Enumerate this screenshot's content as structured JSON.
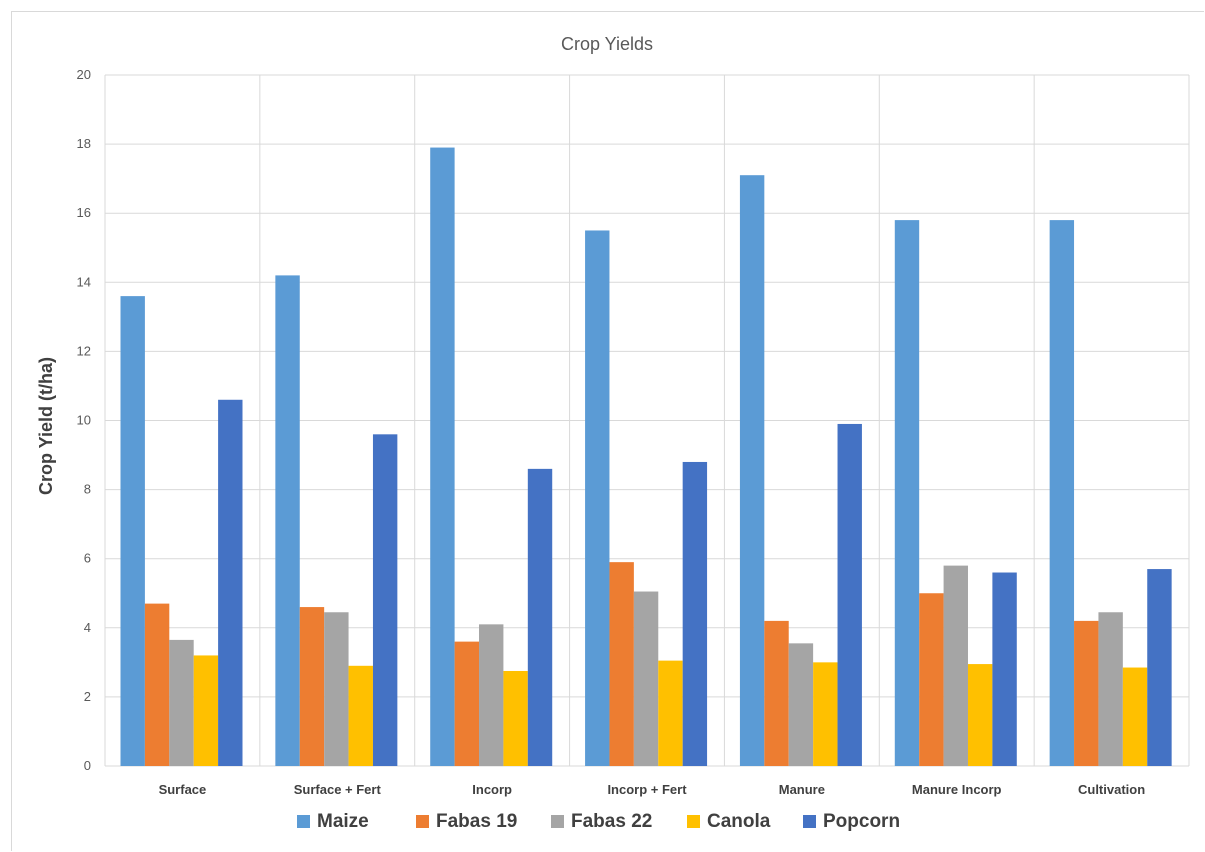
{
  "chart_data": {
    "type": "bar",
    "title": "Crop Yields",
    "xlabel": "",
    "ylabel": "Crop Yield (t/ha)",
    "ylim": [
      0,
      20
    ],
    "yticks": [
      0,
      2,
      4,
      6,
      8,
      10,
      12,
      14,
      16,
      18,
      20
    ],
    "grid": true,
    "legend_position": "bottom",
    "categories": [
      "Surface",
      "Surface + Fert",
      "Incorp",
      "Incorp + Fert",
      "Manure",
      "Manure Incorp",
      "Cultivation"
    ],
    "series": [
      {
        "name": "Maize",
        "color": "#5b9bd5",
        "values": [
          13.6,
          14.2,
          17.9,
          15.5,
          17.1,
          15.8,
          15.8
        ]
      },
      {
        "name": "Fabas 19",
        "color": "#ed7d31",
        "values": [
          4.7,
          4.6,
          3.6,
          5.9,
          4.2,
          5.0,
          4.2
        ]
      },
      {
        "name": "Fabas 22",
        "color": "#a5a5a5",
        "values": [
          3.65,
          4.45,
          4.1,
          5.05,
          3.55,
          5.8,
          4.45
        ]
      },
      {
        "name": "Canola",
        "color": "#ffc000",
        "values": [
          3.2,
          2.9,
          2.75,
          3.05,
          3.0,
          2.95,
          2.85
        ]
      },
      {
        "name": "Popcorn",
        "color": "#4472c4",
        "values": [
          10.6,
          9.6,
          8.6,
          8.8,
          9.9,
          5.6,
          5.7
        ]
      }
    ]
  }
}
